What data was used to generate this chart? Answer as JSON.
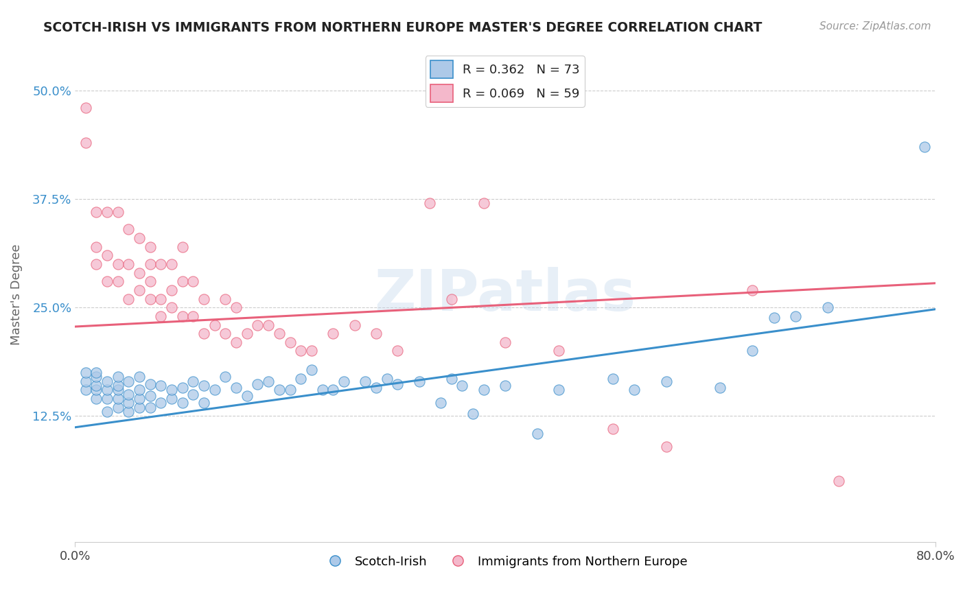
{
  "title": "SCOTCH-IRISH VS IMMIGRANTS FROM NORTHERN EUROPE MASTER'S DEGREE CORRELATION CHART",
  "source_text": "Source: ZipAtlas.com",
  "ylabel": "Master's Degree",
  "xlim": [
    0.0,
    0.8
  ],
  "ylim": [
    -0.02,
    0.55
  ],
  "ytick_positions": [
    0.125,
    0.25,
    0.375,
    0.5
  ],
  "ytick_labels": [
    "12.5%",
    "25.0%",
    "37.5%",
    "50.0%"
  ],
  "blue_color": "#adc9e8",
  "pink_color": "#f4b8cb",
  "blue_line_color": "#3a8fcb",
  "pink_line_color": "#e8607a",
  "watermark": "ZIPatlas",
  "legend_label_blue": "R = 0.362   N = 73",
  "legend_label_pink": "R = 0.069   N = 59",
  "legend_entry_blue": "Scotch-Irish",
  "legend_entry_pink": "Immigrants from Northern Europe",
  "blue_line_x0": 0.0,
  "blue_line_y0": 0.112,
  "blue_line_x1": 0.8,
  "blue_line_y1": 0.248,
  "pink_line_x0": 0.0,
  "pink_line_y0": 0.228,
  "pink_line_x1": 0.8,
  "pink_line_y1": 0.278,
  "blue_scatter_x": [
    0.01,
    0.01,
    0.01,
    0.02,
    0.02,
    0.02,
    0.02,
    0.02,
    0.03,
    0.03,
    0.03,
    0.03,
    0.04,
    0.04,
    0.04,
    0.04,
    0.04,
    0.05,
    0.05,
    0.05,
    0.05,
    0.06,
    0.06,
    0.06,
    0.06,
    0.07,
    0.07,
    0.07,
    0.08,
    0.08,
    0.09,
    0.09,
    0.1,
    0.1,
    0.11,
    0.11,
    0.12,
    0.12,
    0.13,
    0.14,
    0.15,
    0.16,
    0.17,
    0.18,
    0.19,
    0.2,
    0.21,
    0.22,
    0.23,
    0.24,
    0.25,
    0.27,
    0.28,
    0.29,
    0.3,
    0.32,
    0.34,
    0.35,
    0.36,
    0.37,
    0.38,
    0.4,
    0.43,
    0.45,
    0.5,
    0.52,
    0.55,
    0.6,
    0.63,
    0.65,
    0.67,
    0.7,
    0.79
  ],
  "blue_scatter_y": [
    0.155,
    0.165,
    0.175,
    0.145,
    0.155,
    0.16,
    0.17,
    0.175,
    0.13,
    0.145,
    0.155,
    0.165,
    0.135,
    0.145,
    0.155,
    0.16,
    0.17,
    0.13,
    0.14,
    0.15,
    0.165,
    0.135,
    0.145,
    0.155,
    0.17,
    0.135,
    0.148,
    0.162,
    0.14,
    0.16,
    0.145,
    0.155,
    0.14,
    0.158,
    0.15,
    0.165,
    0.14,
    0.16,
    0.155,
    0.17,
    0.158,
    0.148,
    0.162,
    0.165,
    0.155,
    0.155,
    0.168,
    0.178,
    0.155,
    0.155,
    0.165,
    0.165,
    0.158,
    0.168,
    0.162,
    0.165,
    0.14,
    0.168,
    0.16,
    0.128,
    0.155,
    0.16,
    0.105,
    0.155,
    0.168,
    0.155,
    0.165,
    0.158,
    0.2,
    0.238,
    0.24,
    0.25,
    0.435
  ],
  "pink_scatter_x": [
    0.01,
    0.01,
    0.02,
    0.02,
    0.02,
    0.03,
    0.03,
    0.03,
    0.04,
    0.04,
    0.04,
    0.05,
    0.05,
    0.05,
    0.06,
    0.06,
    0.06,
    0.07,
    0.07,
    0.07,
    0.07,
    0.08,
    0.08,
    0.08,
    0.09,
    0.09,
    0.09,
    0.1,
    0.1,
    0.1,
    0.11,
    0.11,
    0.12,
    0.12,
    0.13,
    0.14,
    0.14,
    0.15,
    0.15,
    0.16,
    0.17,
    0.18,
    0.19,
    0.2,
    0.21,
    0.22,
    0.24,
    0.26,
    0.28,
    0.3,
    0.33,
    0.35,
    0.38,
    0.4,
    0.45,
    0.5,
    0.55,
    0.63,
    0.71
  ],
  "pink_scatter_y": [
    0.44,
    0.48,
    0.3,
    0.32,
    0.36,
    0.28,
    0.31,
    0.36,
    0.28,
    0.3,
    0.36,
    0.26,
    0.3,
    0.34,
    0.27,
    0.29,
    0.33,
    0.26,
    0.28,
    0.3,
    0.32,
    0.24,
    0.26,
    0.3,
    0.25,
    0.27,
    0.3,
    0.24,
    0.28,
    0.32,
    0.24,
    0.28,
    0.22,
    0.26,
    0.23,
    0.22,
    0.26,
    0.21,
    0.25,
    0.22,
    0.23,
    0.23,
    0.22,
    0.21,
    0.2,
    0.2,
    0.22,
    0.23,
    0.22,
    0.2,
    0.37,
    0.26,
    0.37,
    0.21,
    0.2,
    0.11,
    0.09,
    0.27,
    0.05
  ]
}
